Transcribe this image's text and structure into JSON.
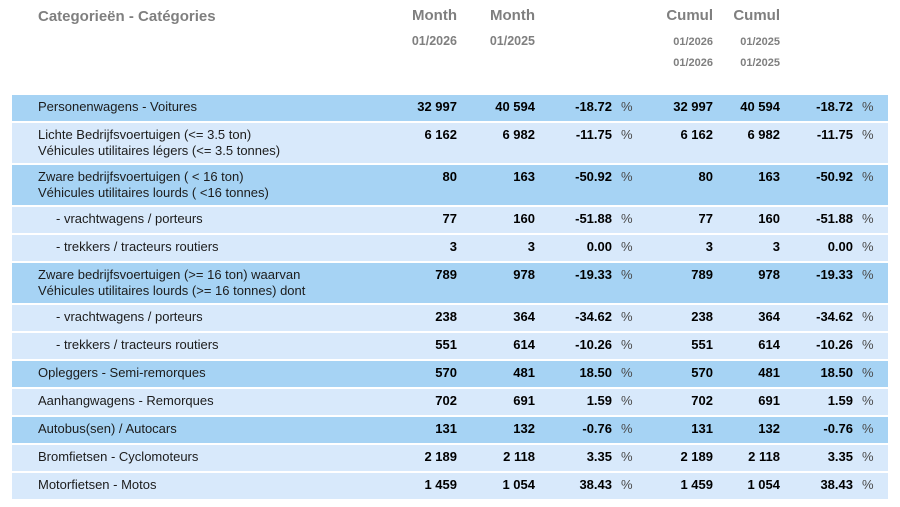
{
  "colors": {
    "row_medium": "#a6d3f4",
    "row_light": "#d8e9fb",
    "header_text": "#7f7f7f",
    "category_text": "#1c1c1c",
    "number_text": "#000000",
    "percent_text": "#4a4a4a"
  },
  "header": {
    "category_label": "Categorieën - Catégories",
    "month_current": {
      "label": "Month",
      "period": "01/2026"
    },
    "month_previous": {
      "label": "Month",
      "period": "01/2025"
    },
    "cumul_current": {
      "label": "Cumul",
      "period_from": "01/2026",
      "period_to": "01/2026"
    },
    "cumul_previous": {
      "label": "Cumul",
      "period_from": "01/2025",
      "period_to": "01/2025"
    }
  },
  "table": {
    "percent_symbol": "%",
    "rows": [
      {
        "label": [
          "Personenwagens - Voitures"
        ],
        "indent": false,
        "shade": "medium",
        "month_current": "32 997",
        "month_previous": "40 594",
        "month_pct": "-18.72",
        "cumul_current": "32 997",
        "cumul_previous": "40 594",
        "cumul_pct": "-18.72"
      },
      {
        "label": [
          "Lichte Bedrijfsvoertuigen (<= 3.5 ton)",
          "Véhicules utilitaires légers (<= 3.5 tonnes)"
        ],
        "indent": false,
        "shade": "light",
        "month_current": "6 162",
        "month_previous": "6 982",
        "month_pct": "-11.75",
        "cumul_current": "6 162",
        "cumul_previous": "6 982",
        "cumul_pct": "-11.75"
      },
      {
        "label": [
          "Zware bedrijfsvoertuigen ( < 16 ton)",
          "Véhicules utilitaires lourds ( <16 tonnes)"
        ],
        "indent": false,
        "shade": "medium",
        "month_current": "80",
        "month_previous": "163",
        "month_pct": "-50.92",
        "cumul_current": "80",
        "cumul_previous": "163",
        "cumul_pct": "-50.92"
      },
      {
        "label": [
          "- vrachtwagens / porteurs"
        ],
        "indent": true,
        "shade": "light",
        "month_current": "77",
        "month_previous": "160",
        "month_pct": "-51.88",
        "cumul_current": "77",
        "cumul_previous": "160",
        "cumul_pct": "-51.88"
      },
      {
        "label": [
          "- trekkers / tracteurs routiers"
        ],
        "indent": true,
        "shade": "light",
        "month_current": "3",
        "month_previous": "3",
        "month_pct": "0.00",
        "cumul_current": "3",
        "cumul_previous": "3",
        "cumul_pct": "0.00"
      },
      {
        "label": [
          "Zware bedrijfsvoertuigen (>= 16 ton) waarvan",
          "Véhicules utilitaires lourds (>= 16 tonnes) dont"
        ],
        "indent": false,
        "shade": "medium",
        "month_current": "789",
        "month_previous": "978",
        "month_pct": "-19.33",
        "cumul_current": "789",
        "cumul_previous": "978",
        "cumul_pct": "-19.33"
      },
      {
        "label": [
          "- vrachtwagens / porteurs"
        ],
        "indent": true,
        "shade": "light",
        "month_current": "238",
        "month_previous": "364",
        "month_pct": "-34.62",
        "cumul_current": "238",
        "cumul_previous": "364",
        "cumul_pct": "-34.62"
      },
      {
        "label": [
          "- trekkers / tracteurs routiers"
        ],
        "indent": true,
        "shade": "light",
        "month_current": "551",
        "month_previous": "614",
        "month_pct": "-10.26",
        "cumul_current": "551",
        "cumul_previous": "614",
        "cumul_pct": "-10.26"
      },
      {
        "label": [
          "Opleggers - Semi-remorques"
        ],
        "indent": false,
        "shade": "medium",
        "month_current": "570",
        "month_previous": "481",
        "month_pct": "18.50",
        "cumul_current": "570",
        "cumul_previous": "481",
        "cumul_pct": "18.50"
      },
      {
        "label": [
          "Aanhangwagens - Remorques"
        ],
        "indent": false,
        "shade": "light",
        "month_current": "702",
        "month_previous": "691",
        "month_pct": "1.59",
        "cumul_current": "702",
        "cumul_previous": "691",
        "cumul_pct": "1.59"
      },
      {
        "label": [
          "Autobus(sen) / Autocars"
        ],
        "indent": false,
        "shade": "medium",
        "month_current": "131",
        "month_previous": "132",
        "month_pct": "-0.76",
        "cumul_current": "131",
        "cumul_previous": "132",
        "cumul_pct": "-0.76"
      },
      {
        "label": [
          "Bromfietsen - Cyclomoteurs"
        ],
        "indent": false,
        "shade": "light",
        "month_current": "2 189",
        "month_previous": "2 118",
        "month_pct": "3.35",
        "cumul_current": "2 189",
        "cumul_previous": "2 118",
        "cumul_pct": "3.35"
      },
      {
        "label": [
          "Motorfietsen - Motos"
        ],
        "indent": false,
        "shade": "light",
        "month_current": "1 459",
        "month_previous": "1 054",
        "month_pct": "38.43",
        "cumul_current": "1 459",
        "cumul_previous": "1 054",
        "cumul_pct": "38.43"
      }
    ]
  }
}
